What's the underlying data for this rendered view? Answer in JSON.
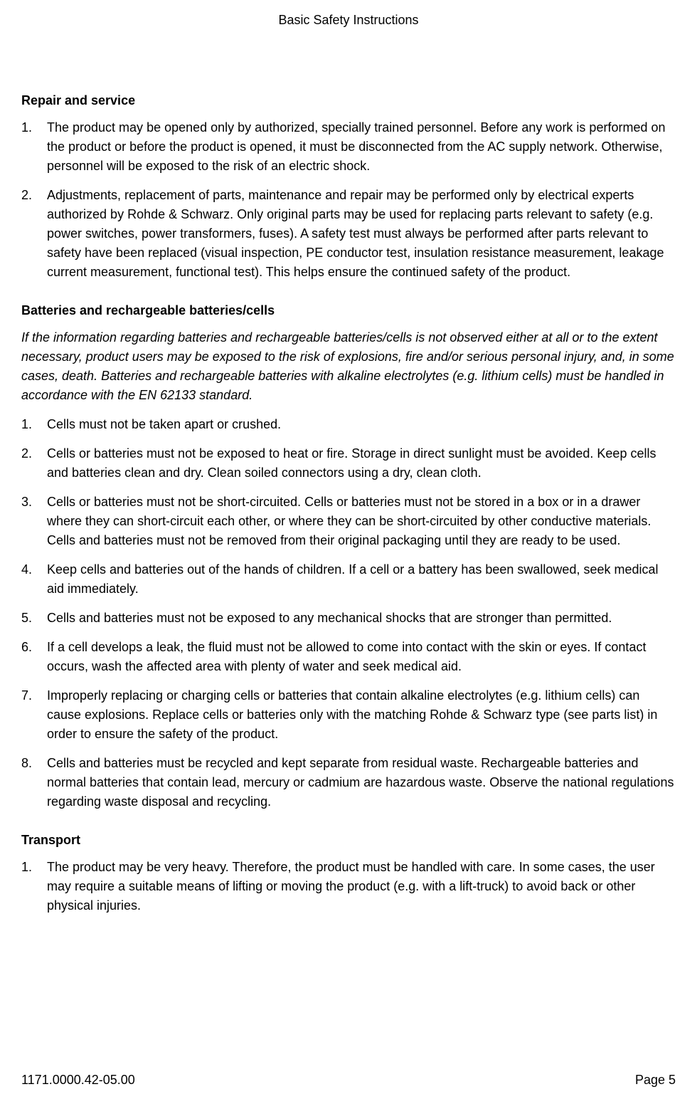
{
  "header": {
    "title": "Basic Safety Instructions"
  },
  "sections": {
    "repair": {
      "heading": "Repair and service",
      "items": [
        "The product may be opened only by authorized, specially trained personnel. Before any work is performed on the product or before the product is opened, it must be disconnected from the AC supply network. Otherwise, personnel will be exposed to the risk of an electric shock.",
        "Adjustments, replacement of parts, maintenance and repair may be performed only by electrical experts authorized by Rohde & Schwarz. Only original parts may be used for replacing parts relevant to safety (e.g. power switches, power transformers, fuses). A safety test must always be performed after parts relevant to safety have been replaced (visual inspection, PE conductor test, insulation resistance measurement, leakage current measurement, functional test). This helps ensure the continued safety of the product."
      ]
    },
    "batteries": {
      "heading": "Batteries and rechargeable batteries/cells",
      "intro": "If the information regarding batteries and rechargeable batteries/cells is not observed either at all or to the extent necessary, product users may be exposed to the risk of explosions, fire and/or serious personal injury, and, in some cases, death. Batteries and rechargeable batteries with alkaline electrolytes (e.g. lithium cells) must be handled in accordance with the EN 62133 standard.",
      "items": [
        "Cells must not be taken apart or crushed.",
        "Cells or batteries must not be exposed to heat or fire. Storage in direct sunlight must be avoided. Keep cells and batteries clean and dry. Clean soiled connectors using a dry, clean cloth.",
        "Cells or batteries must not be short-circuited. Cells or batteries must not be stored in a box or in a drawer where they can short-circuit each other, or where they can be short-circuited by other conductive materials. Cells and batteries must not be removed from their original packaging until they are ready to be used.",
        "Keep cells and batteries out of the hands of children. If a cell or a battery has been swallowed, seek medical aid immediately.",
        "Cells and batteries must not be exposed to any mechanical shocks that are stronger than permitted.",
        "If a cell develops a leak, the fluid must not be allowed to come into contact with the skin or eyes. If contact occurs, wash the affected area with plenty of water and seek medical aid.",
        "Improperly replacing or charging cells or batteries that contain alkaline electrolytes (e.g. lithium cells) can cause explosions. Replace cells or batteries only with the matching Rohde & Schwarz type (see parts list) in order to ensure the safety of the product.",
        "Cells and batteries must be recycled and kept separate from residual waste. Rechargeable batteries and normal batteries that contain lead, mercury or cadmium are hazardous waste. Observe the national regulations regarding waste disposal and recycling."
      ]
    },
    "transport": {
      "heading": "Transport",
      "items": [
        "The product may be very heavy. Therefore, the product must be handled with care. In some cases, the user may require a suitable means of lifting or moving the product (e.g. with a lift-truck) to avoid back or other physical injuries."
      ]
    }
  },
  "footer": {
    "docnum": "1171.0000.42-05.00",
    "pagenum": "Page 5"
  }
}
